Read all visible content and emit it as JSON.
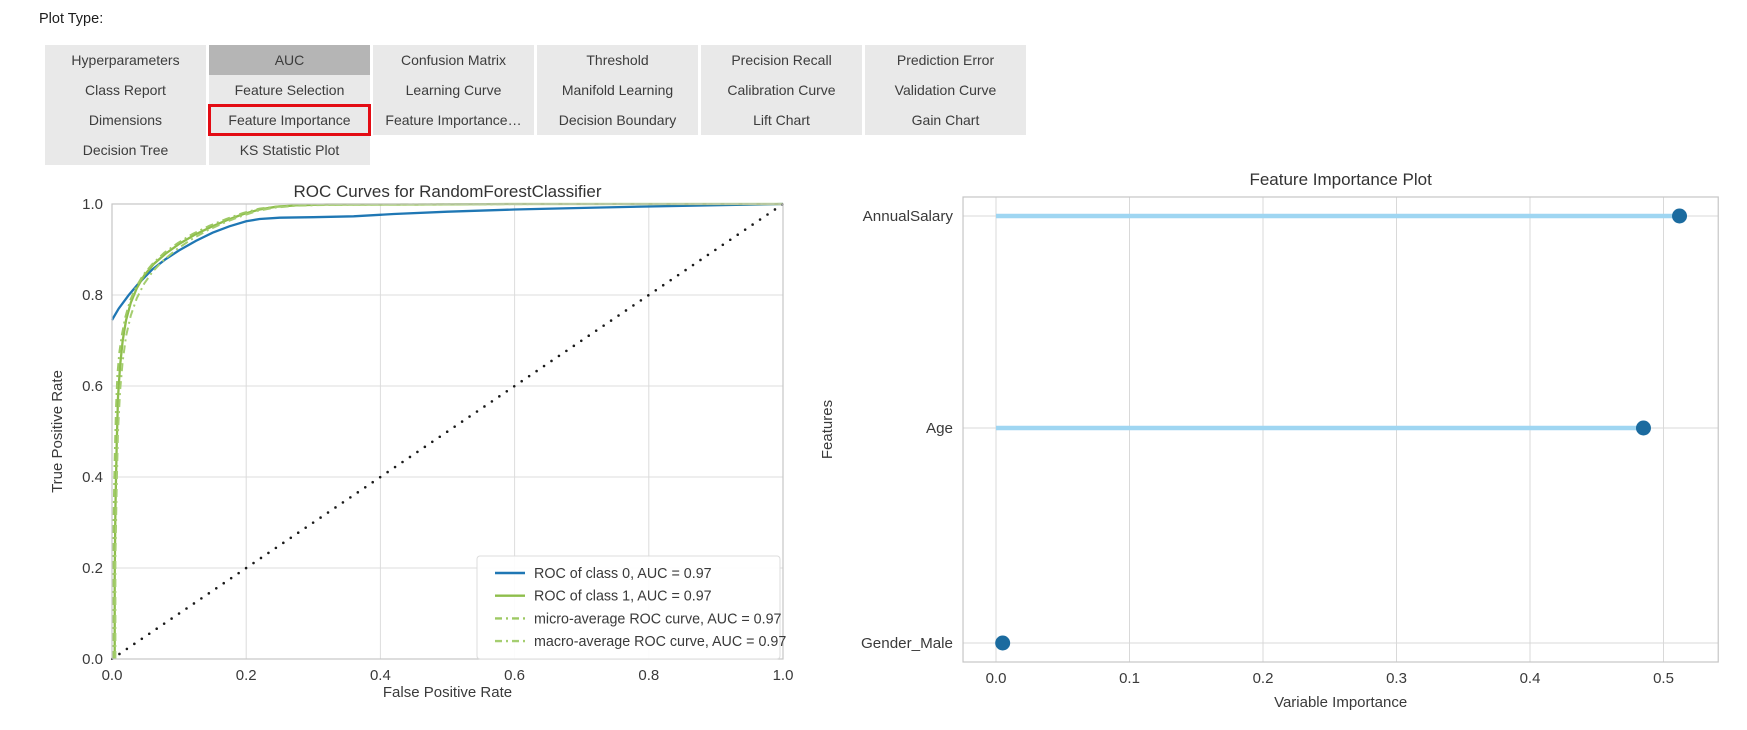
{
  "page": {
    "plot_type_label": "Plot Type:"
  },
  "plot_types": {
    "selected": "AUC",
    "highlighted": "Feature Importance",
    "columns": [
      [
        "Hyperparameters",
        "Class Report",
        "Dimensions",
        "Decision Tree"
      ],
      [
        "AUC",
        "Feature Selection",
        "Feature Importance",
        "KS Statistic Plot"
      ],
      [
        "Confusion Matrix",
        "Learning Curve",
        "Feature Importance…"
      ],
      [
        "Threshold",
        "Manifold Learning",
        "Decision Boundary"
      ],
      [
        "Precision Recall",
        "Calibration Curve",
        "Lift Chart"
      ],
      [
        "Prediction Error",
        "Validation Curve",
        "Gain Chart"
      ]
    ],
    "colors": {
      "block_bg": "#e9e9e9",
      "selected_bg": "#b5b5b5",
      "text": "#3c3c3c",
      "highlight_border": "#e30b13"
    }
  },
  "chart_data": [
    {
      "type": "line",
      "title": "ROC Curves for RandomForestClassifier",
      "xlabel": "False Positive Rate",
      "ylabel": "True Positive Rate",
      "xlim": [
        0,
        1
      ],
      "ylim": [
        0,
        1
      ],
      "xticks": [
        0.0,
        0.2,
        0.4,
        0.6,
        0.8,
        1.0
      ],
      "yticks": [
        0.0,
        0.2,
        0.4,
        0.6,
        0.8,
        1.0
      ],
      "grid": true,
      "legend_position": "lower right",
      "series": [
        {
          "name": "ROC of class 0, AUC = 0.97",
          "color": "#1f77b4",
          "style": "solid",
          "points": [
            [
              0,
              0.745
            ],
            [
              0.01,
              0.77
            ],
            [
              0.025,
              0.8
            ],
            [
              0.04,
              0.826
            ],
            [
              0.06,
              0.856
            ],
            [
              0.08,
              0.879
            ],
            [
              0.1,
              0.898
            ],
            [
              0.125,
              0.919
            ],
            [
              0.15,
              0.937
            ],
            [
              0.175,
              0.951
            ],
            [
              0.2,
              0.962
            ],
            [
              0.22,
              0.967
            ],
            [
              0.25,
              0.97
            ],
            [
              0.3,
              0.971
            ],
            [
              0.36,
              0.973
            ],
            [
              0.42,
              0.978
            ],
            [
              0.5,
              0.983
            ],
            [
              0.6,
              0.988
            ],
            [
              0.72,
              0.992
            ],
            [
              0.85,
              0.996
            ],
            [
              1,
              1
            ]
          ]
        },
        {
          "name": "ROC of class 1, AUC = 0.97",
          "color": "#8ebe4b",
          "style": "solid",
          "points": [
            [
              0.004,
              0
            ],
            [
              0.004,
              0.18
            ],
            [
              0.005,
              0.33
            ],
            [
              0.007,
              0.47
            ],
            [
              0.009,
              0.575
            ],
            [
              0.012,
              0.645
            ],
            [
              0.016,
              0.7
            ],
            [
              0.021,
              0.745
            ],
            [
              0.028,
              0.783
            ],
            [
              0.037,
              0.815
            ],
            [
              0.048,
              0.843
            ],
            [
              0.062,
              0.868
            ],
            [
              0.08,
              0.891
            ],
            [
              0.1,
              0.912
            ],
            [
              0.123,
              0.932
            ],
            [
              0.148,
              0.95
            ],
            [
              0.172,
              0.965
            ],
            [
              0.196,
              0.978
            ],
            [
              0.22,
              0.988
            ],
            [
              0.245,
              0.994
            ],
            [
              0.275,
              0.997
            ],
            [
              0.32,
              0.999
            ],
            [
              0.45,
              0.999
            ],
            [
              0.6,
              1
            ],
            [
              1,
              1
            ]
          ]
        },
        {
          "name": "micro-average ROC curve, AUC = 0.97",
          "color": "#9dc963",
          "style": "dashed",
          "points": [
            [
              0.002,
              0
            ],
            [
              0.002,
              0.28
            ],
            [
              0.004,
              0.44
            ],
            [
              0.006,
              0.55
            ],
            [
              0.008,
              0.625
            ],
            [
              0.011,
              0.675
            ],
            [
              0.015,
              0.715
            ],
            [
              0.02,
              0.752
            ],
            [
              0.027,
              0.788
            ],
            [
              0.036,
              0.818
            ],
            [
              0.047,
              0.845
            ],
            [
              0.06,
              0.868
            ],
            [
              0.078,
              0.893
            ],
            [
              0.098,
              0.914
            ],
            [
              0.12,
              0.934
            ],
            [
              0.145,
              0.952
            ],
            [
              0.17,
              0.967
            ],
            [
              0.195,
              0.98
            ],
            [
              0.22,
              0.99
            ],
            [
              0.25,
              0.995
            ],
            [
              0.29,
              0.998
            ],
            [
              0.4,
              0.999
            ],
            [
              0.6,
              1
            ],
            [
              1,
              1
            ]
          ]
        },
        {
          "name": "macro-average ROC curve, AUC = 0.97",
          "color": "#a5ce70",
          "style": "dashed",
          "points": [
            [
              0.005,
              0
            ],
            [
              0.005,
              0.22
            ],
            [
              0.007,
              0.38
            ],
            [
              0.009,
              0.5
            ],
            [
              0.012,
              0.59
            ],
            [
              0.016,
              0.655
            ],
            [
              0.021,
              0.71
            ],
            [
              0.028,
              0.755
            ],
            [
              0.037,
              0.793
            ],
            [
              0.048,
              0.825
            ],
            [
              0.061,
              0.852
            ],
            [
              0.077,
              0.877
            ],
            [
              0.096,
              0.9
            ],
            [
              0.118,
              0.922
            ],
            [
              0.142,
              0.942
            ],
            [
              0.167,
              0.959
            ],
            [
              0.192,
              0.973
            ],
            [
              0.217,
              0.985
            ],
            [
              0.243,
              0.992
            ],
            [
              0.272,
              0.996
            ],
            [
              0.32,
              0.998
            ],
            [
              0.45,
              0.999
            ],
            [
              0.65,
              1
            ],
            [
              1,
              1
            ]
          ]
        },
        {
          "name": "",
          "color": "#1a1a1a",
          "style": "dotted",
          "points": [
            [
              0,
              0
            ],
            [
              1,
              1
            ]
          ]
        }
      ]
    },
    {
      "type": "lollipop",
      "title": "Feature Importance Plot",
      "xlabel": "Variable Importance",
      "ylabel": "Features",
      "categories": [
        "AnnualSalary",
        "Age",
        "Gender_Male"
      ],
      "values": [
        0.512,
        0.485,
        0.005
      ],
      "xlim": [
        -0.0247,
        0.541
      ],
      "xticks": [
        0.0,
        0.1,
        0.2,
        0.3,
        0.4,
        0.5
      ],
      "grid": true,
      "line_color": "#9fd6f2",
      "dot_color": "#1b6b9f"
    }
  ]
}
